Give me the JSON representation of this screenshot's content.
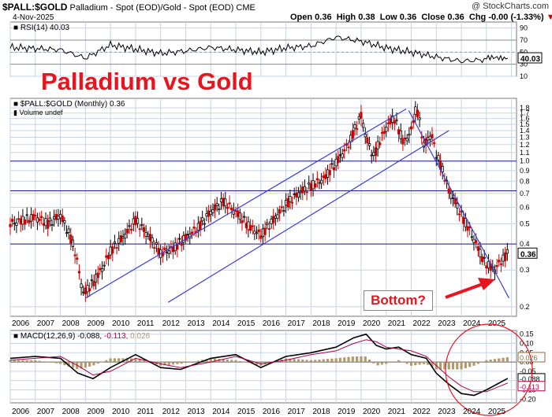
{
  "header": {
    "symbol": "$PALL:$GOLD",
    "description": "Palladium - Spot (EOD)/Gold - Spot (EOD)",
    "exchange": "CME",
    "date": "4-Nov-2025",
    "watermark": "@ StockCharts.com",
    "open": "Open 0.36",
    "high": "High 0.38",
    "low": "Low 0.36",
    "close": "Close 0.36",
    "chg": "Chg -0.00 (-1.33%)",
    "chg_arrow": "▼"
  },
  "annotations": {
    "title": "Palladium vs Gold",
    "bottom_label": "Bottom?",
    "annotation_color": "#e8141e"
  },
  "colors": {
    "price_up": "#000000",
    "price_down": "#cc0000",
    "channel_line": "#3a3ad6",
    "grid": "#c7d3e6",
    "rsi_line": "#000000",
    "macd_line": "#000000",
    "signal_line": "#b0004a",
    "histogram": "#b39a6a"
  },
  "chart_data": [
    {
      "type": "line",
      "panel": "RSI",
      "legend": "RSI(14) 40.03",
      "ylim": [
        10,
        100
      ],
      "y_ticks": [
        90,
        70,
        50,
        30,
        10
      ],
      "last_value_label": "40.03",
      "x": [
        2006,
        2007,
        2008,
        2009,
        2010,
        2011,
        2012,
        2013,
        2014,
        2015,
        2016,
        2017,
        2018,
        2019,
        2020,
        2021,
        2022,
        2023,
        2024,
        2025,
        2025.85
      ],
      "values": [
        58,
        56,
        54,
        40,
        62,
        55,
        48,
        52,
        58,
        54,
        50,
        57,
        60,
        75,
        68,
        57,
        50,
        42,
        35,
        38,
        40
      ]
    },
    {
      "type": "candlestick",
      "panel": "Price",
      "legend": "$PALL:$GOLD (Monthly) 0.36",
      "volume_label": "Volume undef",
      "y_scale": "log",
      "ylim": [
        0.18,
        2.0
      ],
      "y_ticks": [
        "1.8",
        "1.7",
        "1.6",
        "1.5",
        "1.4",
        "1.3",
        "1.2",
        "1.1",
        "1.0",
        "0.9",
        "0.8",
        "0.7",
        "0.6",
        "0.5",
        "0.4",
        "0.3",
        "0.2"
      ],
      "last_value_label": "0.36",
      "x_ticks": [
        "2006",
        "2007",
        "2008",
        "2009",
        "2010",
        "2011",
        "2012",
        "2013",
        "2014",
        "2015",
        "2016",
        "2017",
        "2018",
        "2019",
        "2020",
        "2021",
        "2022",
        "2023",
        "2024",
        "2025"
      ],
      "x": [
        2006,
        2006.5,
        2007,
        2007.5,
        2008,
        2008.5,
        2008.9,
        2009.3,
        2009.7,
        2010,
        2010.5,
        2011,
        2011.5,
        2012,
        2012.5,
        2013,
        2013.5,
        2014,
        2014.5,
        2015,
        2015.5,
        2016,
        2016.5,
        2017,
        2017.5,
        2018,
        2018.5,
        2019,
        2019.5,
        2020,
        2020.2,
        2020.5,
        2021,
        2021.3,
        2021.7,
        2022,
        2022.2,
        2022.5,
        2022.8,
        2023,
        2023.5,
        2024,
        2024.5,
        2024.9,
        2025.3,
        2025.85
      ],
      "values": [
        0.5,
        0.52,
        0.54,
        0.5,
        0.55,
        0.4,
        0.23,
        0.26,
        0.31,
        0.37,
        0.43,
        0.52,
        0.44,
        0.36,
        0.38,
        0.43,
        0.48,
        0.57,
        0.64,
        0.57,
        0.49,
        0.44,
        0.52,
        0.62,
        0.7,
        0.76,
        0.82,
        0.98,
        1.2,
        1.65,
        1.28,
        1.05,
        1.45,
        1.62,
        1.22,
        1.4,
        1.82,
        1.18,
        1.35,
        1.08,
        0.72,
        0.55,
        0.42,
        0.33,
        0.3,
        0.36
      ],
      "channel_upper_line": {
        "x": [
          2009.0,
          2021.8
        ],
        "values": [
          0.22,
          1.78
        ]
      },
      "channel_lower_line": {
        "x": [
          2012.3,
          2023.5
        ],
        "values": [
          0.21,
          1.4
        ]
      },
      "downtrend_line": {
        "x": [
          2021.9,
          2025.9
        ],
        "values": [
          1.75,
          0.22
        ]
      },
      "horizontal_lines": [
        1.0,
        0.72,
        0.4
      ]
    },
    {
      "type": "line",
      "panel": "MACD",
      "legend_prefix": "MACD(12,26,9)",
      "legend_values": [
        "-0.088",
        "-0.113",
        "0.026"
      ],
      "ylim": [
        -0.22,
        0.17
      ],
      "y_ticks": [
        "0.15",
        "0.10",
        "0.05",
        "0.00",
        "-0.05",
        "-0.10",
        "-0.15",
        "-0.20"
      ],
      "last_value_labels": [
        "0.026",
        "-0.088",
        "-0.113"
      ],
      "x": [
        2006,
        2007,
        2008,
        2008.7,
        2009.3,
        2010,
        2011,
        2012,
        2012.8,
        2014,
        2015,
        2016,
        2017,
        2018,
        2019,
        2019.7,
        2020.2,
        2020.6,
        2021,
        2021.5,
        2022,
        2022.6,
        2023,
        2023.5,
        2024,
        2024.5,
        2025,
        2025.85
      ],
      "series": [
        {
          "name": "MACD",
          "values": [
            0.02,
            0.03,
            0.02,
            -0.06,
            -0.09,
            -0.03,
            0.04,
            -0.03,
            -0.04,
            0.02,
            0.04,
            -0.03,
            0.03,
            0.05,
            0.08,
            0.13,
            0.15,
            0.09,
            0.07,
            0.08,
            0.04,
            0.02,
            -0.06,
            -0.12,
            -0.17,
            -0.18,
            -0.15,
            -0.088
          ]
        },
        {
          "name": "Signal",
          "values": [
            0.01,
            0.02,
            0.03,
            -0.02,
            -0.07,
            -0.05,
            0.02,
            -0.01,
            -0.03,
            0.0,
            0.03,
            -0.01,
            0.01,
            0.04,
            0.06,
            0.1,
            0.12,
            0.11,
            0.08,
            0.07,
            0.06,
            0.03,
            -0.02,
            -0.08,
            -0.13,
            -0.16,
            -0.16,
            -0.113
          ]
        },
        {
          "name": "Histogram",
          "values": [
            0.01,
            0.01,
            -0.01,
            -0.04,
            -0.02,
            0.02,
            0.02,
            -0.02,
            -0.01,
            0.02,
            0.01,
            -0.02,
            0.02,
            0.01,
            0.02,
            0.03,
            0.03,
            -0.02,
            -0.01,
            0.01,
            -0.02,
            -0.01,
            -0.04,
            -0.04,
            -0.04,
            -0.02,
            0.01,
            0.026
          ]
        }
      ]
    }
  ]
}
